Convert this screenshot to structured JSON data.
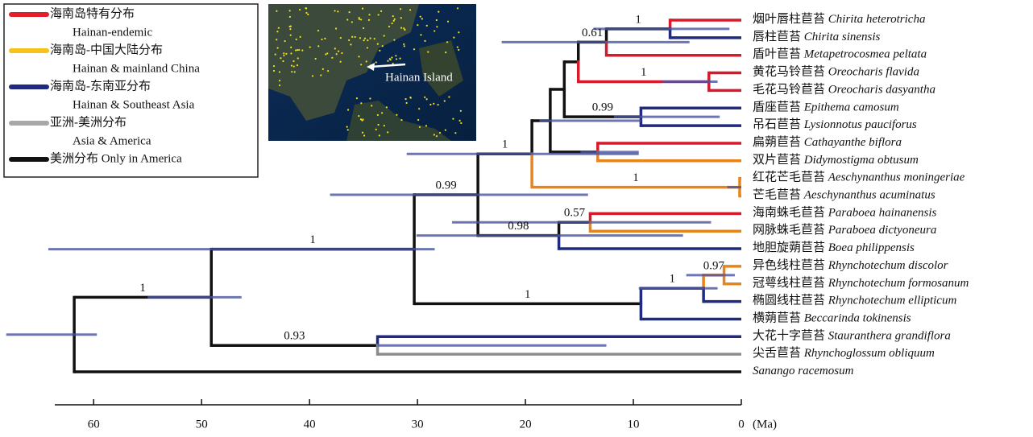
{
  "legend": [
    {
      "label": "海南岛特有分布",
      "sublabel": "Hainan-endemic",
      "color": "#e3202a"
    },
    {
      "label": "海南岛-中国大陆分布",
      "sublabel": "Hainan & mainland China",
      "color": "#f6c21b"
    },
    {
      "label": "海南岛-东南亚分布",
      "sublabel": "Hainan & Southeast Asia",
      "color": "#1f2a80"
    },
    {
      "label": "亚洲-美洲分布",
      "sublabel": "Asia & America",
      "color": "#a8a8a8"
    },
    {
      "label": "美洲分布 Only in America",
      "color": "#111111"
    }
  ],
  "map_label": "Hainan Island",
  "axis": {
    "xlim": [
      63.6,
      0
    ],
    "xticks": [
      60,
      50,
      40,
      30,
      20,
      10,
      0
    ],
    "unit": "(Ma)"
  },
  "tree": {
    "age": 61.8,
    "hpd": [
      68.1,
      59.7
    ],
    "color": "#111111",
    "children": [
      {
        "age": 49.1,
        "support": 1,
        "hpd": [
          55.0,
          46.3
        ],
        "color": "#111111",
        "children": [
          {
            "age": 30.3,
            "support": 1,
            "hpd": [
              64.2,
              28.4
            ],
            "color": "#111111",
            "children": [
              {
                "age": 24.4,
                "support": 0.99,
                "hpd": [
                  38.1,
                  14.2
                ],
                "color": "#111111",
                "children": [
                  {
                    "age": 19.4,
                    "support": 1,
                    "hpd": [
                      31.0,
                      9.5
                    ],
                    "color": "#111111",
                    "children": [
                      {
                        "age": 17.7,
                        "hpd": [
                          18.7,
                          9.3
                        ],
                        "color": "#111111",
                        "children": [
                          {
                            "age": 16.4,
                            "color": "#111111",
                            "children": [
                              {
                                "age": 15.1,
                                "color": "#111111",
                                "children": [
                                  {
                                    "age": 12.5,
                                    "support": 0.61,
                                    "hpd": [
                                      22.2,
                                      4.8
                                    ],
                                    "color": "#111111",
                                    "children": [
                                      {
                                        "age": 6.6,
                                        "support": 1,
                                        "hpd": [
                                          13.7,
                                          1.1
                                        ],
                                        "color": "#111111",
                                        "children": [
                                          {
                                            "chinese": "烟叶唇柱苣苔",
                                            "latin": "Chirita heterotricha",
                                            "color": "#d7192a"
                                          },
                                          {
                                            "chinese": "唇柱苣苔",
                                            "latin": "Chirita sinensis",
                                            "color": "#1f2a80"
                                          }
                                        ]
                                      },
                                      {
                                        "chinese": "盾叶苣苔",
                                        "latin": "Metapetrocosmea peltata",
                                        "color": "#d7192a"
                                      }
                                    ]
                                  },
                                  {
                                    "age": 3.0,
                                    "support": 1,
                                    "hpd": [
                                      7.3,
                                      2.2
                                    ],
                                    "color": "#d7192a",
                                    "children": [
                                      {
                                        "chinese": "黄花马铃苣苔",
                                        "latin": "Oreocharis flavida",
                                        "color": "#d7192a"
                                      },
                                      {
                                        "chinese": "毛花马铃苣苔",
                                        "latin": "Oreocharis dasyantha",
                                        "color": "#d7192a"
                                      }
                                    ]
                                  }
                                ]
                              },
                              {
                                "age": 9.3,
                                "support": 0.99,
                                "hpd": [
                                  11.8,
                                  2.0
                                ],
                                "color": "#111111",
                                "children": [
                                  {
                                    "chinese": "盾座苣苔",
                                    "latin": "Epithema camosum",
                                    "color": "#1f2a80"
                                  },
                                  {
                                    "chinese": "吊石苣苔",
                                    "latin": "Lysionnotus pauciforus",
                                    "color": "#1f2a80"
                                  }
                                ]
                              }
                            ]
                          },
                          {
                            "age": 13.3,
                            "hpd": [
                              14.9,
                              9.5
                            ],
                            "color": "#111111",
                            "children": [
                              {
                                "chinese": "扁蒴苣苔",
                                "latin": "Cathayanthe biflora",
                                "color": "#d7192a"
                              },
                              {
                                "chinese": "双片苣苔",
                                "latin": "Didymostigma obtusum",
                                "color": "#e8841c"
                              }
                            ]
                          }
                        ]
                      },
                      {
                        "age": 0.15,
                        "support": 1,
                        "hpd": [
                          1.3,
                          0
                        ],
                        "color": "#e8841c",
                        "children": [
                          {
                            "chinese": "红花芒毛苣苔",
                            "latin": "Aeschynanthus moningeriae",
                            "color": "#e8841c"
                          },
                          {
                            "chinese": "芒毛苣苔",
                            "latin": "Aeschynanthus acuminatus",
                            "color": "#e8841c"
                          }
                        ]
                      }
                    ]
                  },
                  {
                    "age": 16.9,
                    "support": 0.98,
                    "hpd": [
                      30.1,
                      5.4
                    ],
                    "color": "#111111",
                    "children": [
                      {
                        "age": 14.0,
                        "support": 0.57,
                        "hpd": [
                          26.8,
                          2.8
                        ],
                        "color": "#111111",
                        "children": [
                          {
                            "chinese": "海南蛛毛苣苔",
                            "latin": "Paraboea hainanensis",
                            "color": "#d7192a"
                          },
                          {
                            "chinese": "网脉蛛毛苣苔",
                            "latin": "Paraboea dictyoneura",
                            "color": "#e8841c"
                          }
                        ]
                      },
                      {
                        "chinese": "地胆旋蒴苣苔",
                        "latin": "Boea philippensis",
                        "color": "#1f2a80"
                      }
                    ]
                  }
                ]
              },
              {
                "age": 9.3,
                "support": 1,
                "color": "#111111",
                "children": [
                  {
                    "age": 3.5,
                    "support": 1,
                    "hpd": [
                      9.5,
                      2.2
                    ],
                    "color": "#1f2a80",
                    "children": [
                      {
                        "age": 1.6,
                        "support": 0.97,
                        "hpd": [
                          5.1,
                          0.6
                        ],
                        "color": "#e8841c",
                        "children": [
                          {
                            "chinese": "异色线柱苣苔",
                            "latin": "Rhynchotechum discolor",
                            "color": "#e8841c"
                          },
                          {
                            "chinese": "冠萼线柱苣苔",
                            "latin": "Rhynchotechum formosanum",
                            "color": "#e8841c"
                          }
                        ]
                      },
                      {
                        "chinese": "椭圆线柱苣苔",
                        "latin": "Rhynchotechum ellipticum",
                        "color": "#1f2a80"
                      }
                    ]
                  },
                  {
                    "chinese": "横蒴苣苔",
                    "latin": "Beccarinda tokinensis",
                    "color": "#1f2a80"
                  }
                ]
              }
            ]
          },
          {
            "age": 33.7,
            "support": 0.93,
            "hpd": [
              33.7,
              12.5
            ],
            "color": "#111111",
            "children": [
              {
                "chinese": "大花十字苣苔",
                "latin": "Stauranthera grandiflora",
                "color": "#1f2a80"
              },
              {
                "chinese": "尖舌苣苔",
                "latin": "Rhynchoglossum obliquum",
                "color": "#8c8c8c"
              }
            ]
          }
        ]
      },
      {
        "latin": "Sanango racemosum",
        "color": "#111111"
      }
    ]
  }
}
